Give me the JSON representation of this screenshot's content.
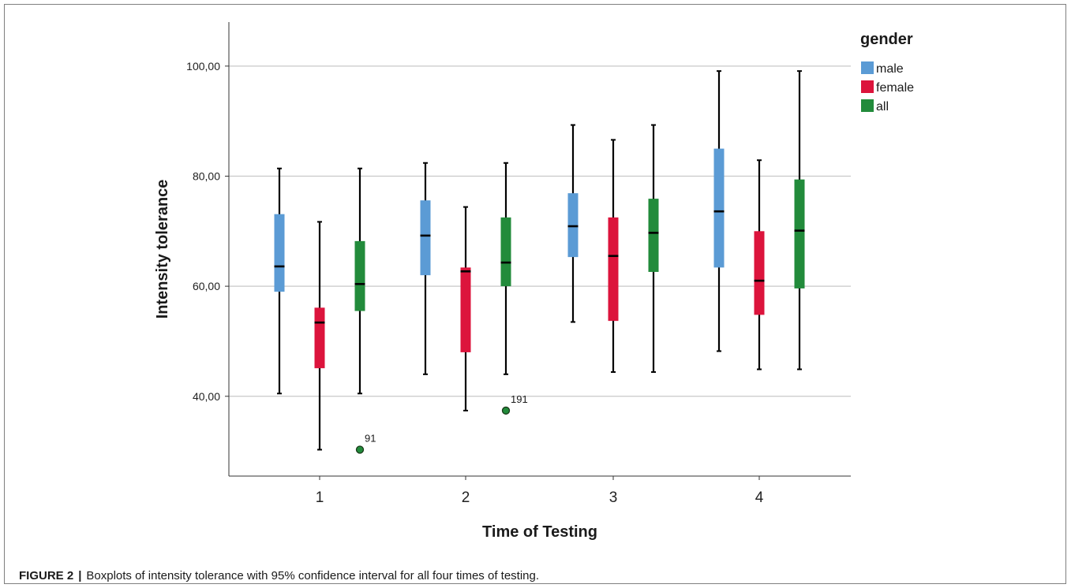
{
  "caption": {
    "label": "FIGURE 2",
    "separator": "|",
    "text": "Boxplots of intensity tolerance with 95% confidence interval for all four times of testing."
  },
  "chart_data": {
    "type": "boxplot",
    "xlabel": "Time of Testing",
    "ylabel": "Intensity tolerance",
    "ylim": [
      25.5,
      108
    ],
    "yticks": [
      40,
      60,
      80,
      100
    ],
    "ytick_labels": [
      "40,00",
      "60,00",
      "80,00",
      "100,00"
    ],
    "categories": [
      "1",
      "2",
      "3",
      "4"
    ],
    "grid": "horizontal",
    "legend": {
      "title": "gender",
      "placement": "top-right"
    },
    "series": [
      {
        "name": "male",
        "color": "#5b9bd5",
        "boxes": [
          {
            "min": 40.5,
            "q1": 59.0,
            "median": 63.6,
            "q3": 73.1,
            "max": 81.4
          },
          {
            "min": 44.0,
            "q1": 62.0,
            "median": 69.2,
            "q3": 75.6,
            "max": 82.4
          },
          {
            "min": 53.5,
            "q1": 65.3,
            "median": 70.9,
            "q3": 76.9,
            "max": 89.3
          },
          {
            "min": 48.2,
            "q1": 63.4,
            "median": 73.6,
            "q3": 85.0,
            "max": 99.1
          }
        ],
        "outliers": []
      },
      {
        "name": "female",
        "color": "#dc143c",
        "boxes": [
          {
            "min": 30.3,
            "q1": 45.1,
            "median": 53.4,
            "q3": 56.1,
            "max": 71.7
          },
          {
            "min": 37.4,
            "q1": 48.0,
            "median": 62.7,
            "q3": 63.4,
            "max": 74.4
          },
          {
            "min": 44.4,
            "q1": 53.7,
            "median": 65.5,
            "q3": 72.5,
            "max": 86.6
          },
          {
            "min": 44.9,
            "q1": 54.8,
            "median": 61.0,
            "q3": 70.0,
            "max": 82.9
          }
        ],
        "outliers": []
      },
      {
        "name": "all",
        "color": "#228b3b",
        "boxes": [
          {
            "min": 40.5,
            "q1": 55.5,
            "median": 60.4,
            "q3": 68.2,
            "max": 81.4
          },
          {
            "min": 44.0,
            "q1": 60.0,
            "median": 64.3,
            "q3": 72.5,
            "max": 82.4
          },
          {
            "min": 44.4,
            "q1": 62.6,
            "median": 69.7,
            "q3": 75.9,
            "max": 89.3
          },
          {
            "min": 44.9,
            "q1": 59.6,
            "median": 70.1,
            "q3": 79.4,
            "max": 99.1
          }
        ],
        "outliers": [
          {
            "category": "1",
            "value": 30.3,
            "label": "91"
          },
          {
            "category": "2",
            "value": 37.4,
            "label": "191"
          }
        ]
      }
    ]
  }
}
